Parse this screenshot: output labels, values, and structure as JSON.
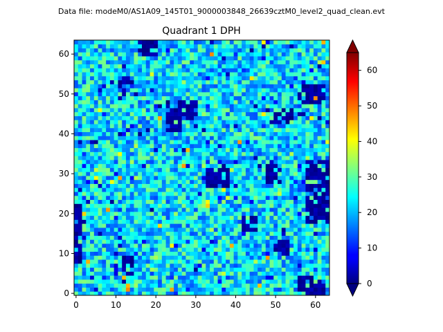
{
  "chart_data": {
    "type": "heatmap",
    "suptitle": "Data file: modeM0/AS1A09_145T01_9000003848_26639cztM0_level2_quad_clean.evt",
    "title": "Quadrant 1 DPH",
    "xlabel": "",
    "ylabel": "",
    "grid_size": [
      64,
      64
    ],
    "xlim": [
      -0.5,
      63.5
    ],
    "ylim": [
      -0.5,
      63.5
    ],
    "xticks": [
      0,
      10,
      20,
      30,
      40,
      50,
      60
    ],
    "yticks": [
      0,
      10,
      20,
      30,
      40,
      50,
      60
    ],
    "colormap": "jet",
    "vmin": 0,
    "vmax": 65,
    "colorbar_ticks": [
      0,
      10,
      20,
      30,
      40,
      50,
      60
    ],
    "colorbar_extend": "both",
    "typical_value": 23,
    "cold_regions": [
      {
        "x": [
          16,
          20
        ],
        "y": [
          60,
          63
        ]
      },
      {
        "x": [
          11,
          15
        ],
        "y": [
          50,
          54
        ]
      },
      {
        "x": [
          23,
          26
        ],
        "y": [
          41,
          48
        ]
      },
      {
        "x": [
          26,
          30
        ],
        "y": [
          44,
          48
        ]
      },
      {
        "x": [
          33,
          38
        ],
        "y": [
          27,
          31
        ]
      },
      {
        "x": [
          50,
          54
        ],
        "y": [
          43,
          46
        ]
      },
      {
        "x": [
          56,
          62
        ],
        "y": [
          48,
          52
        ]
      },
      {
        "x": [
          58,
          63
        ],
        "y": [
          18,
          33
        ]
      },
      {
        "x": [
          42,
          45
        ],
        "y": [
          16,
          19
        ]
      },
      {
        "x": [
          0,
          1
        ],
        "y": [
          8,
          22
        ]
      },
      {
        "x": [
          56,
          62
        ],
        "y": [
          0,
          4
        ]
      },
      {
        "x": [
          50,
          53
        ],
        "y": [
          10,
          13
        ]
      },
      {
        "x": [
          12,
          14
        ],
        "y": [
          5,
          9
        ]
      },
      {
        "x": [
          48,
          51
        ],
        "y": [
          28,
          32
        ]
      }
    ]
  }
}
